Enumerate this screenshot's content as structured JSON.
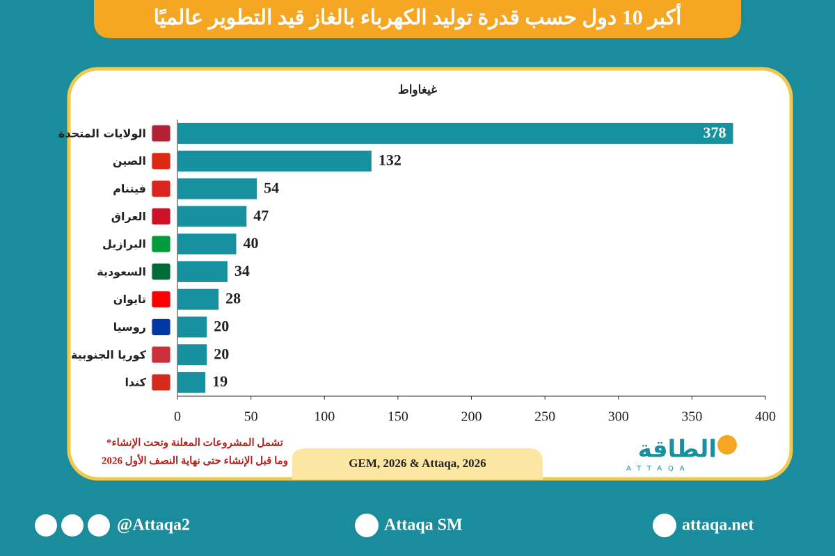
{
  "chart_data": {
    "type": "hbar",
    "title": "أكبر 10 دول حسب قدرة توليد الكهرباء بالغاز قيد التطوير عالميًا",
    "unit_label": "غيغاواط",
    "categories": [
      "الولايات المتحدة",
      "الصين",
      "فيتنام",
      "العراق",
      "البرازيل",
      "السعودية",
      "تايوان",
      "روسيا",
      "كوريا الجنوبية",
      "كندا"
    ],
    "values": [
      378,
      132,
      54,
      47,
      40,
      34,
      28,
      20,
      20,
      19
    ],
    "color": "#17909f",
    "xlim": [
      0,
      400
    ],
    "xticks": [
      0,
      50,
      100,
      150,
      200,
      250,
      300,
      350,
      400
    ]
  },
  "footnote": [
    "*تشمل المشروعات المعلنة وتحت الإنشاء",
    "وما قبل الإنشاء حتى نهاية النصف الأول 2026"
  ],
  "source": "GEM, 2026 & Attaqa, 2026",
  "logo": {
    "arabic": "الطاقة",
    "latin": "ATTAQA"
  },
  "footer": {
    "social": "@Attaqa2",
    "youtube": "Attaqa SM",
    "website": "attaqa.net"
  }
}
